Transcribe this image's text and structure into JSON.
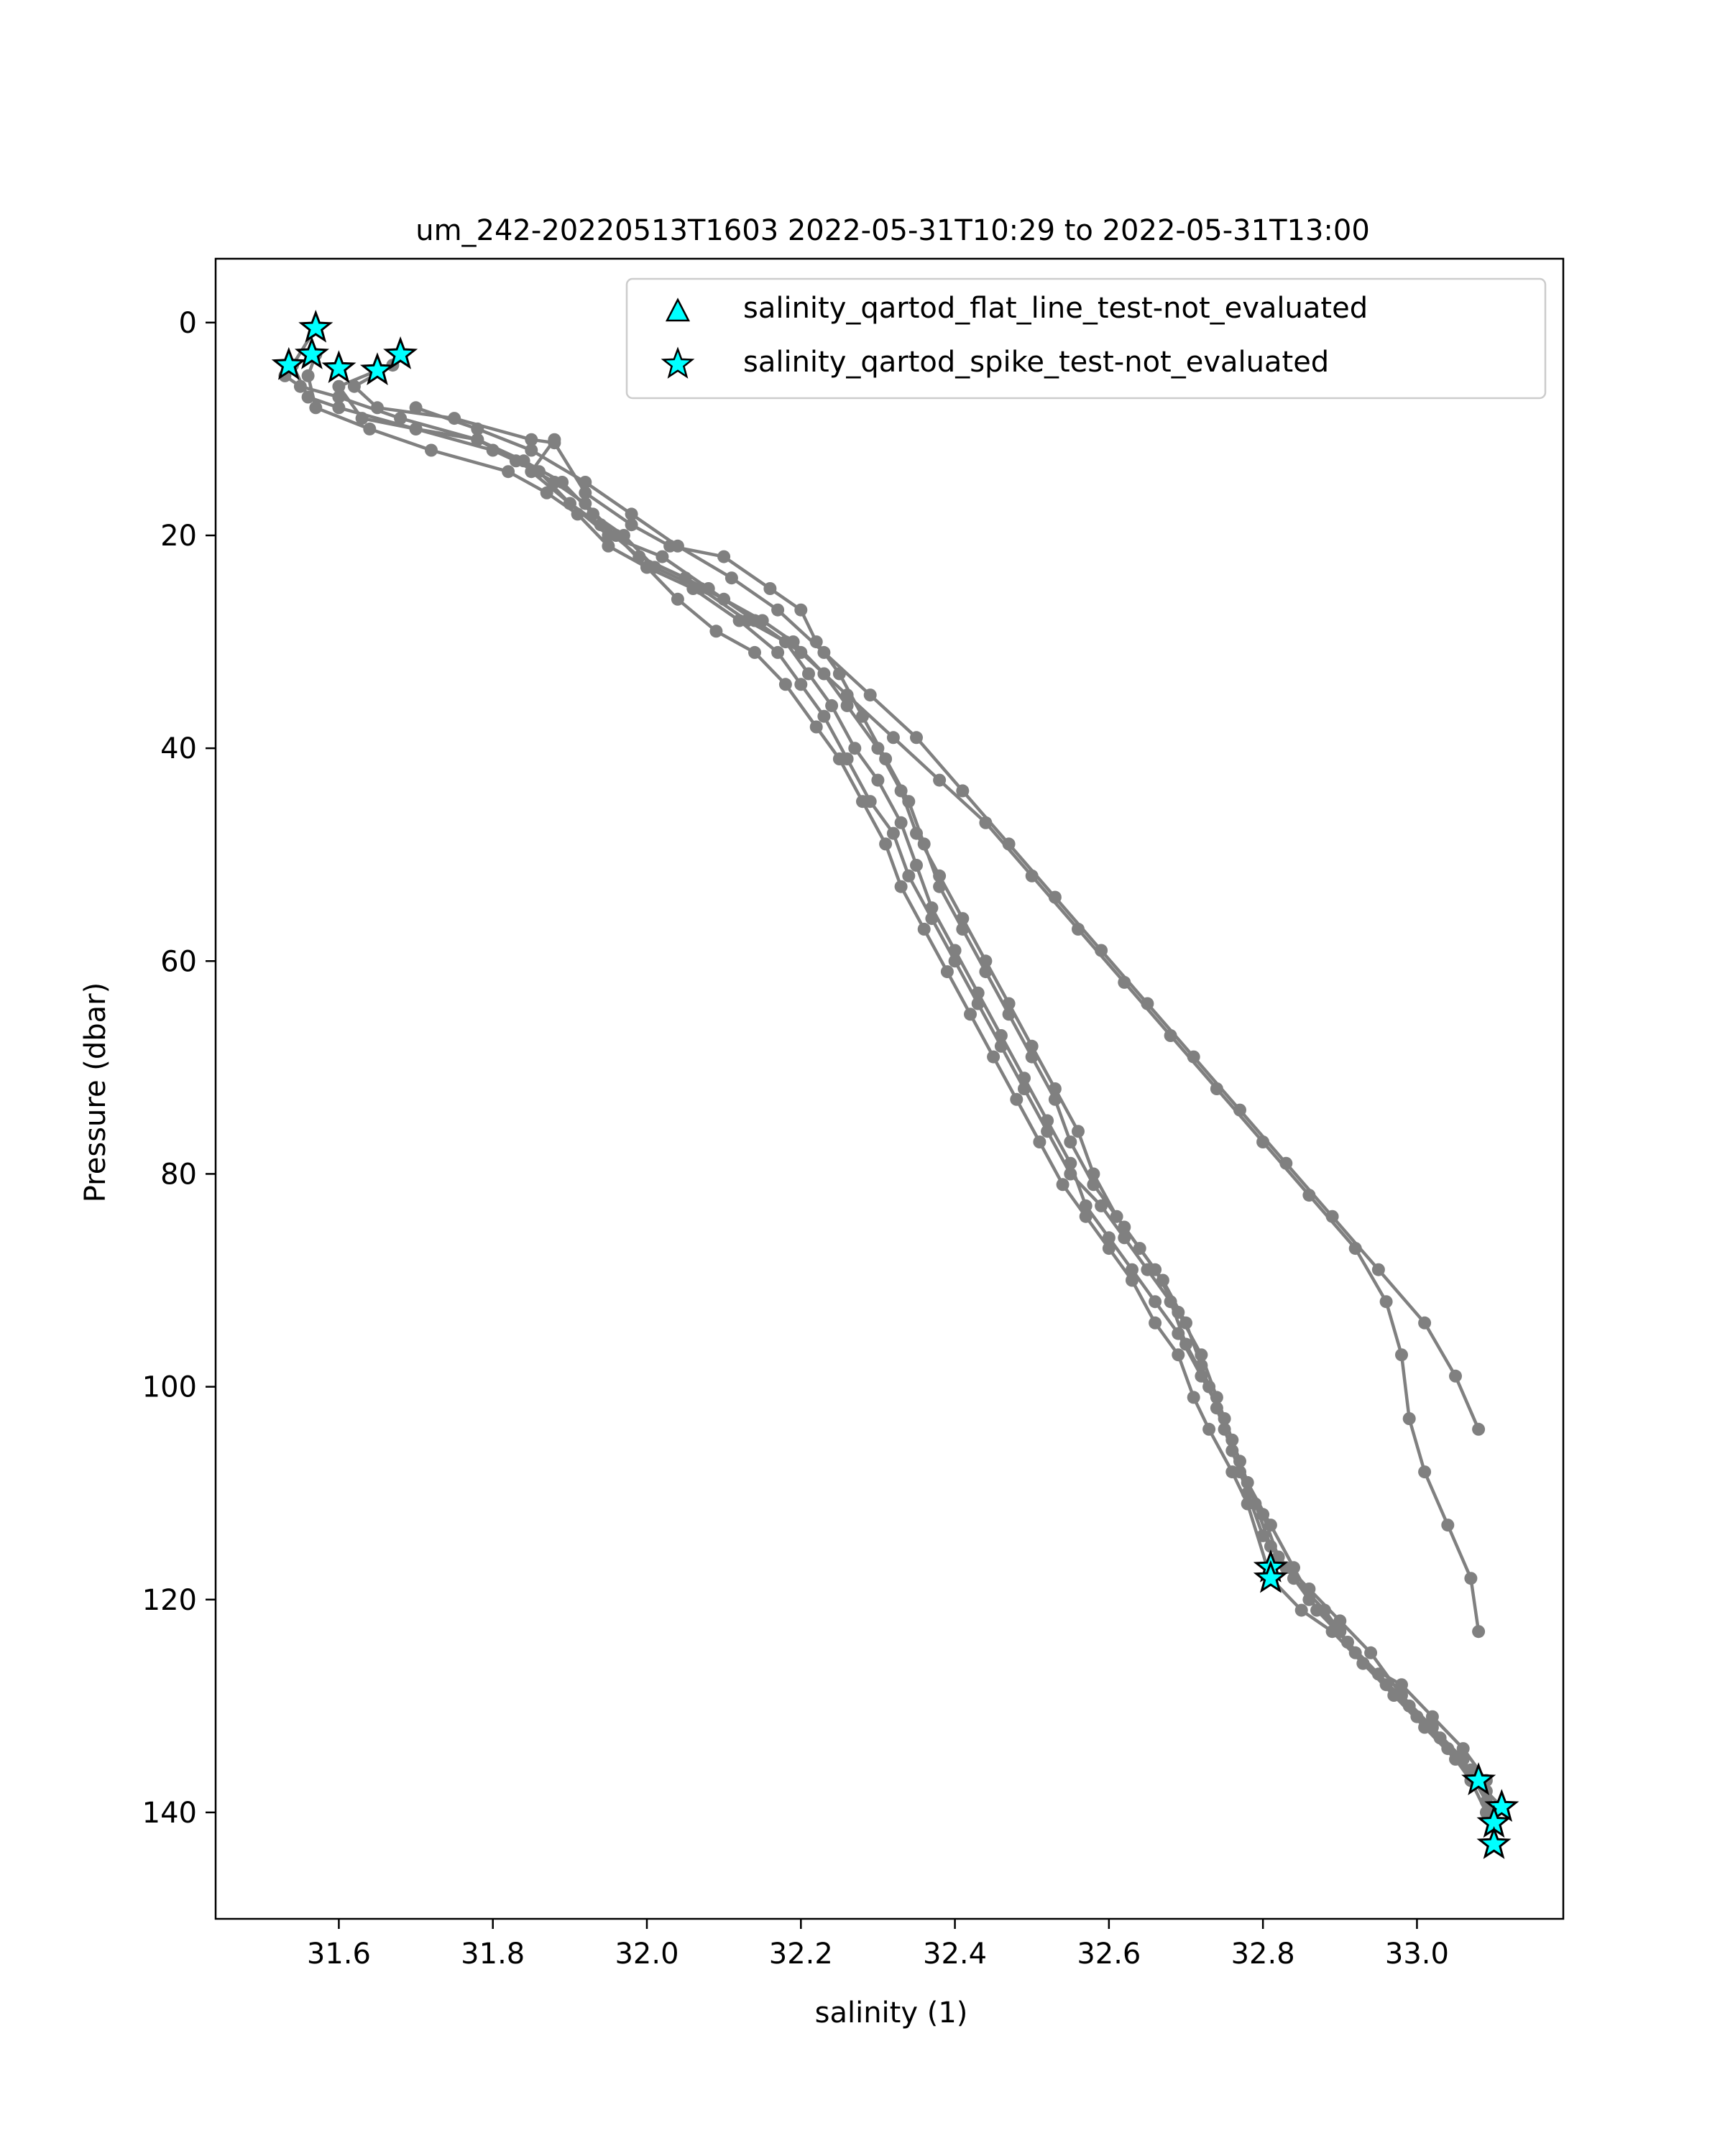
{
  "chart_data": {
    "type": "line",
    "title": "um_242-20220513T1603 2022-05-31T10:29 to 2022-05-31T13:00",
    "xlabel": "salinity (1)",
    "ylabel": "Pressure (dbar)",
    "xlim": [
      31.44,
      33.19
    ],
    "ylim": [
      150,
      -6
    ],
    "y_inverted": true,
    "grid": false,
    "xticks": [
      "31.6",
      "31.8",
      "32.0",
      "32.2",
      "32.4",
      "32.6",
      "32.8",
      "33.0"
    ],
    "yticks": [
      "0",
      "20",
      "40",
      "60",
      "80",
      "100",
      "120",
      "140"
    ],
    "legend": {
      "placement": "top-right",
      "entries": [
        {
          "label": "salinity_qartod_flat_line_test-not_evaluated",
          "marker": "triangle"
        },
        {
          "label": "salinity_qartod_spike_test-not_evaluated",
          "marker": "star"
        }
      ]
    },
    "colors": {
      "line": "#808080",
      "flag_fill": "#00ffff",
      "flag_edge": "#000000"
    },
    "series": [
      {
        "x": [
          31.57,
          31.54,
          31.56,
          31.6,
          31.7,
          31.8,
          31.86,
          31.9,
          31.94,
          31.99,
          32.05,
          32.1,
          32.15,
          32.19,
          32.23,
          32.26,
          32.3,
          32.33,
          32.35,
          32.38,
          32.41,
          32.44,
          32.47,
          32.5,
          32.53,
          32.56,
          32.58,
          32.61,
          32.64,
          32.67,
          32.7,
          32.72,
          32.74,
          32.76,
          32.78,
          32.8,
          32.83,
          32.86,
          32.9,
          32.93,
          32.97,
          33.01,
          33.05,
          33.08,
          33.1,
          33.1
        ],
        "y": [
          0.5,
          4,
          7,
          8,
          10,
          12,
          14,
          17,
          19,
          22,
          24,
          26,
          28,
          30,
          33,
          36,
          40,
          44,
          48,
          52,
          56,
          60,
          64,
          68,
          72,
          76,
          80,
          84,
          87,
          90,
          94,
          98,
          102,
          106,
          110,
          114,
          117,
          120,
          123,
          126,
          129,
          132,
          135,
          137,
          140,
          143
        ]
      },
      {
        "x": [
          31.68,
          31.67,
          31.62,
          31.65,
          31.75,
          31.85,
          31.88,
          31.92,
          31.98,
          32.03,
          32.1,
          32.16,
          32.2,
          32.22,
          32.25,
          32.28,
          32.31,
          32.34,
          32.36,
          32.38,
          32.41,
          32.44,
          32.47,
          32.5,
          32.53,
          32.55,
          32.58,
          32.62,
          32.66,
          32.69,
          32.72,
          32.74,
          32.76,
          32.78,
          32.81,
          32.84,
          32.87,
          32.91,
          32.95,
          32.99,
          33.03,
          33.07,
          33.09,
          33.11
        ],
        "y": [
          3,
          4,
          6,
          8,
          9,
          11,
          11.3,
          16,
          19,
          21,
          22,
          25,
          27,
          30,
          33,
          37,
          41,
          45,
          49,
          53,
          57,
          61,
          65,
          69,
          73,
          77,
          81,
          85,
          89,
          93,
          97,
          101,
          105,
          109,
          113,
          117,
          121,
          124,
          127,
          130,
          133,
          136,
          138,
          139.5
        ]
      },
      {
        "x": [
          31.53,
          31.55,
          31.6,
          31.68,
          31.78,
          31.84,
          31.89,
          31.93,
          31.97,
          32.01,
          32.07,
          32.13,
          32.18,
          32.21,
          32.24,
          32.27,
          32.3,
          32.33,
          32.35,
          32.37,
          32.4,
          32.43,
          32.46,
          32.49,
          32.52,
          32.55,
          32.57,
          32.6,
          32.63,
          32.66,
          32.69,
          32.72,
          32.75,
          32.77,
          32.79,
          32.81,
          32.84,
          32.88,
          32.92,
          32.96,
          33.0,
          33.04,
          33.07,
          33.09
        ],
        "y": [
          5,
          6,
          7,
          9,
          11,
          13,
          15,
          18,
          20,
          23,
          25,
          28,
          30,
          33,
          36,
          40,
          43,
          47,
          51,
          55,
          59,
          63,
          67,
          71,
          75,
          79,
          83,
          86,
          89,
          92,
          95,
          99,
          103,
          107,
          111,
          115,
          118,
          121,
          125,
          128,
          131,
          134,
          137,
          140
        ]
      },
      {
        "x": [
          31.57,
          31.56,
          31.57,
          31.64,
          31.72,
          31.82,
          31.87,
          31.91,
          31.95,
          32.0,
          32.04,
          32.09,
          32.14,
          32.18,
          32.22,
          32.25,
          32.28,
          32.31,
          32.33,
          32.36,
          32.39,
          32.42,
          32.45,
          32.48,
          32.51,
          32.54,
          32.57,
          32.6,
          32.63,
          32.66,
          32.69,
          32.71,
          32.73,
          32.76,
          32.78,
          32.81,
          32.85,
          32.89,
          32.93,
          32.98,
          33.02,
          33.06,
          33.09,
          33.1
        ],
        "y": [
          3,
          5,
          8,
          10,
          12,
          14,
          16,
          18,
          21,
          23,
          26,
          29,
          31,
          34,
          38,
          41,
          45,
          49,
          53,
          57,
          61,
          65,
          69,
          73,
          77,
          81,
          84,
          87,
          90,
          94,
          97,
          101,
          104,
          108,
          111,
          118,
          121,
          123,
          126,
          128,
          131,
          134,
          137,
          141
        ]
      },
      {
        "x": [
          31.65,
          31.6,
          31.63,
          31.7,
          31.78,
          31.83,
          31.88,
          31.92,
          31.96,
          32.0,
          32.06,
          32.12,
          32.17,
          32.2,
          32.23,
          32.26,
          32.29,
          32.32,
          32.34,
          32.37,
          32.4,
          32.43,
          32.46,
          32.49,
          32.52,
          32.55,
          32.59,
          32.62,
          32.65,
          32.68,
          32.7,
          32.73,
          32.75,
          32.77,
          32.8,
          32.82,
          32.86,
          32.9,
          32.94,
          32.98,
          33.02,
          33.06,
          33.09
        ],
        "y": [
          4.5,
          6,
          9,
          10,
          11,
          13,
          15,
          17,
          20,
          23,
          25,
          28,
          31,
          34,
          37,
          41,
          45,
          48,
          52,
          56,
          60,
          64,
          68,
          72,
          76,
          80,
          83,
          86,
          89,
          92,
          96,
          100,
          104,
          108,
          112,
          116,
          119,
          122,
          125,
          129,
          132,
          135,
          139
        ]
      },
      {
        "x": [
          31.88,
          31.85,
          31.9,
          31.95,
          32.02,
          32.08,
          32.14,
          32.2,
          32.26,
          32.32,
          32.38,
          32.44,
          32.5,
          32.56,
          32.62,
          32.68,
          32.74,
          32.8,
          32.86,
          32.92,
          32.96,
          32.98,
          32.99,
          33.01,
          33.04,
          33.07,
          33.08
        ],
        "y": [
          11,
          14,
          17,
          20,
          22,
          25,
          28,
          31,
          35,
          39,
          43,
          47,
          52,
          57,
          62,
          67,
          72,
          77,
          82,
          87,
          92,
          97,
          103,
          108,
          113,
          118,
          123
        ]
      },
      {
        "x": [
          31.7,
          31.78,
          31.85,
          31.92,
          31.98,
          32.04,
          32.11,
          32.17,
          32.23,
          32.29,
          32.35,
          32.41,
          32.47,
          32.53,
          32.59,
          32.65,
          32.71,
          32.77,
          32.83,
          32.89,
          32.95,
          33.01,
          33.05,
          33.08
        ],
        "y": [
          8,
          10,
          12,
          15,
          18,
          21,
          24,
          27,
          31,
          35,
          39,
          44,
          49,
          54,
          59,
          64,
          69,
          74,
          79,
          84,
          89,
          94,
          99,
          104
        ]
      }
    ],
    "flags": {
      "flat_line": [],
      "spike": [
        {
          "x": 31.57,
          "y": 0.5
        },
        {
          "x": 31.535,
          "y": 4
        },
        {
          "x": 31.565,
          "y": 3
        },
        {
          "x": 31.6,
          "y": 4.3
        },
        {
          "x": 31.65,
          "y": 4.5
        },
        {
          "x": 31.68,
          "y": 3
        },
        {
          "x": 32.81,
          "y": 117
        },
        {
          "x": 32.81,
          "y": 118
        },
        {
          "x": 33.08,
          "y": 137
        },
        {
          "x": 33.11,
          "y": 139.5
        },
        {
          "x": 33.1,
          "y": 141
        },
        {
          "x": 33.1,
          "y": 143
        }
      ]
    }
  }
}
